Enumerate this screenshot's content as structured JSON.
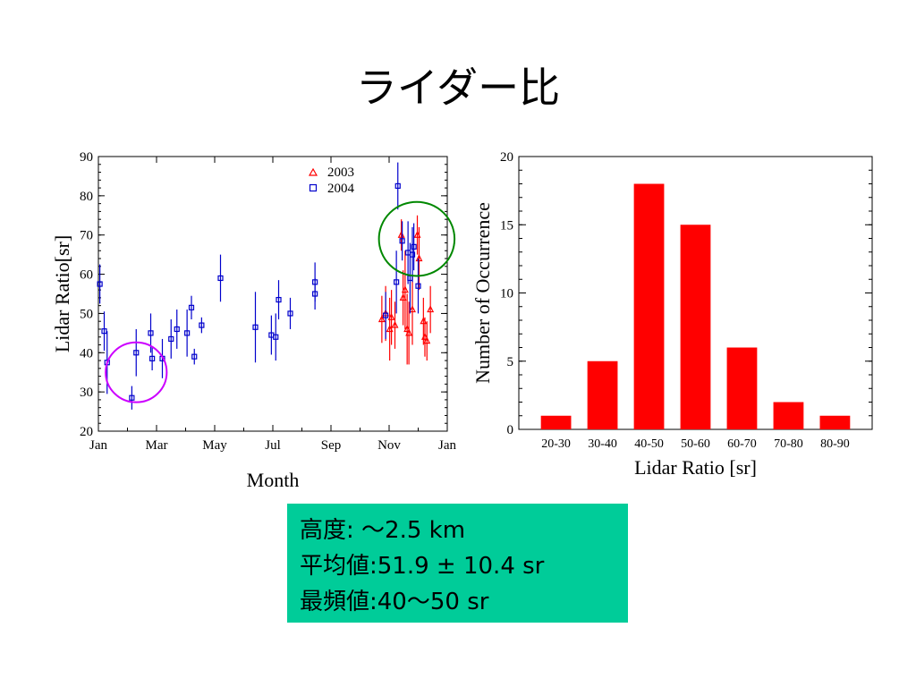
{
  "slide": {
    "title": "ライダー比"
  },
  "summary": {
    "background": "#00cc99",
    "lines": [
      "高度: 〜2.5 km",
      "平均値:51.9 ± 10.4 sr",
      "最頻値:40〜50 sr"
    ]
  },
  "colors": {
    "series_2003": "#ff0000",
    "series_2004": "#0000cc",
    "highlight_low": "#cc00ff",
    "highlight_high": "#008800",
    "bars": "#ff0000"
  },
  "chart_data": [
    {
      "type": "scatter",
      "title": "",
      "xlabel": "Month",
      "ylabel": "Lidar Ratio[sr]",
      "xlim": [
        0,
        12
      ],
      "ylim": [
        20,
        90
      ],
      "x_ticks": [
        {
          "value": 0,
          "label": "Jan"
        },
        {
          "value": 2,
          "label": "Mar"
        },
        {
          "value": 4,
          "label": "May"
        },
        {
          "value": 6,
          "label": "Jul"
        },
        {
          "value": 8,
          "label": "Sep"
        },
        {
          "value": 10,
          "label": "Nov"
        },
        {
          "value": 12,
          "label": "Jan"
        }
      ],
      "y_ticks": [
        20,
        30,
        40,
        50,
        60,
        70,
        80,
        90
      ],
      "legend_position": "top-right",
      "series": [
        {
          "name": "2003",
          "marker": "triangle",
          "points": [
            {
              "x": 9.75,
              "y": 48.5,
              "err": 6
            },
            {
              "x": 9.88,
              "y": 50,
              "err": 7
            },
            {
              "x": 10.02,
              "y": 46,
              "err": 8
            },
            {
              "x": 10.08,
              "y": 49,
              "err": 7
            },
            {
              "x": 10.2,
              "y": 47,
              "err": 6
            },
            {
              "x": 10.42,
              "y": 70,
              "err": 4
            },
            {
              "x": 10.48,
              "y": 54,
              "err": 7
            },
            {
              "x": 10.55,
              "y": 56,
              "err": 10
            },
            {
              "x": 10.62,
              "y": 46,
              "err": 9
            },
            {
              "x": 10.68,
              "y": 45,
              "err": 8
            },
            {
              "x": 10.8,
              "y": 51,
              "err": 9
            },
            {
              "x": 10.97,
              "y": 70,
              "err": 5
            },
            {
              "x": 11.03,
              "y": 64,
              "err": 8
            },
            {
              "x": 11.18,
              "y": 48,
              "err": 6
            },
            {
              "x": 11.23,
              "y": 44,
              "err": 5
            },
            {
              "x": 11.3,
              "y": 43,
              "err": 5
            },
            {
              "x": 11.42,
              "y": 51,
              "err": 6
            }
          ]
        },
        {
          "name": "2004",
          "marker": "square",
          "points": [
            {
              "x": 0.05,
              "y": 57.5,
              "err": 5
            },
            {
              "x": 0.2,
              "y": 45.5,
              "err": 5
            },
            {
              "x": 0.3,
              "y": 37.5,
              "err": 8
            },
            {
              "x": 1.15,
              "y": 28.5,
              "err": 3
            },
            {
              "x": 1.3,
              "y": 40,
              "err": 6
            },
            {
              "x": 1.8,
              "y": 45,
              "err": 5
            },
            {
              "x": 1.85,
              "y": 38.5,
              "err": 3
            },
            {
              "x": 2.2,
              "y": 38.5,
              "err": 5
            },
            {
              "x": 2.5,
              "y": 43.5,
              "err": 5
            },
            {
              "x": 2.7,
              "y": 46,
              "err": 5
            },
            {
              "x": 3.05,
              "y": 45,
              "err": 6
            },
            {
              "x": 3.2,
              "y": 51.5,
              "err": 3
            },
            {
              "x": 3.3,
              "y": 39,
              "err": 2
            },
            {
              "x": 3.55,
              "y": 47,
              "err": 2
            },
            {
              "x": 4.2,
              "y": 59,
              "err": 6
            },
            {
              "x": 5.4,
              "y": 46.5,
              "err": 9
            },
            {
              "x": 5.95,
              "y": 44.5,
              "err": 5
            },
            {
              "x": 6.1,
              "y": 44,
              "err": 6
            },
            {
              "x": 6.2,
              "y": 53.5,
              "err": 5
            },
            {
              "x": 6.6,
              "y": 50,
              "err": 4
            },
            {
              "x": 7.45,
              "y": 55,
              "err": 4
            },
            {
              "x": 7.45,
              "y": 58,
              "err": 5
            },
            {
              "x": 9.88,
              "y": 49.5,
              "err": 6
            },
            {
              "x": 10.25,
              "y": 58,
              "err": 8
            },
            {
              "x": 10.3,
              "y": 82.5,
              "err": 6
            },
            {
              "x": 10.45,
              "y": 68.5,
              "err": 5
            },
            {
              "x": 10.65,
              "y": 65.5,
              "err": 8
            },
            {
              "x": 10.72,
              "y": 59,
              "err": 9
            },
            {
              "x": 10.8,
              "y": 65,
              "err": 7
            },
            {
              "x": 10.85,
              "y": 67,
              "err": 6
            },
            {
              "x": 11.0,
              "y": 57,
              "err": 7
            }
          ]
        }
      ],
      "highlights": [
        {
          "cx": 1.3,
          "cy": 35,
          "r": 1.05,
          "color": "highlight_low"
        },
        {
          "cx": 10.95,
          "cy": 69,
          "r": 1.3,
          "color": "highlight_high"
        }
      ]
    },
    {
      "type": "bar",
      "title": "",
      "xlabel": "Lidar Ratio [sr]",
      "ylabel": "Number of Occurrence",
      "categories": [
        "20-30",
        "30-40",
        "40-50",
        "50-60",
        "60-70",
        "70-80",
        "80-90"
      ],
      "values": [
        1,
        5,
        18,
        15,
        6,
        2,
        1
      ],
      "ylim": [
        0,
        20
      ],
      "y_ticks": [
        0,
        5,
        10,
        15,
        20
      ],
      "grid": false
    }
  ]
}
